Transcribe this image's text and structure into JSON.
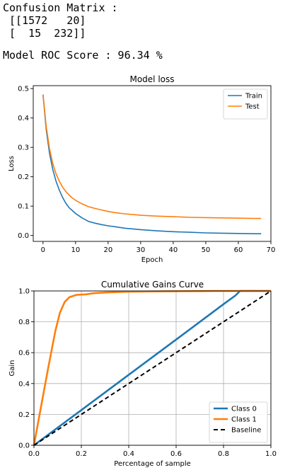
{
  "output": {
    "cm_header": "Confusion Matrix :",
    "cm_row1": " [[1572   20]",
    "cm_row2": " [  15  232]]",
    "roc_line": "Model ROC Score : 96.34 %"
  },
  "chart_data": [
    {
      "type": "line",
      "title": "Model loss",
      "xlabel": "Epoch",
      "ylabel": "Loss",
      "xlim": [
        -3,
        70
      ],
      "ylim": [
        -0.02,
        0.51
      ],
      "xticks": [
        0,
        10,
        20,
        30,
        40,
        50,
        60,
        70
      ],
      "yticks": [
        0.0,
        0.1,
        0.2,
        0.3,
        0.4,
        0.5
      ],
      "legend": "top-right",
      "grid": false,
      "series": [
        {
          "name": "Train",
          "color": "#1f77b4",
          "x": [
            0,
            1,
            2,
            3,
            4,
            5,
            6,
            7,
            8,
            9,
            10,
            12,
            14,
            16,
            18,
            20,
            22,
            25,
            30,
            35,
            40,
            45,
            50,
            55,
            60,
            65,
            67
          ],
          "y": [
            0.48,
            0.36,
            0.28,
            0.225,
            0.185,
            0.155,
            0.13,
            0.11,
            0.095,
            0.085,
            0.075,
            0.06,
            0.048,
            0.042,
            0.037,
            0.033,
            0.03,
            0.025,
            0.02,
            0.016,
            0.013,
            0.011,
            0.009,
            0.008,
            0.007,
            0.006,
            0.006
          ]
        },
        {
          "name": "Test",
          "color": "#ff7f0e",
          "x": [
            0,
            1,
            2,
            3,
            4,
            5,
            6,
            7,
            8,
            9,
            10,
            12,
            14,
            16,
            18,
            20,
            22,
            25,
            30,
            35,
            40,
            45,
            50,
            55,
            60,
            65,
            67
          ],
          "y": [
            0.48,
            0.37,
            0.295,
            0.245,
            0.21,
            0.185,
            0.165,
            0.15,
            0.138,
            0.128,
            0.12,
            0.108,
            0.098,
            0.092,
            0.087,
            0.082,
            0.078,
            0.074,
            0.069,
            0.066,
            0.064,
            0.062,
            0.061,
            0.06,
            0.059,
            0.058,
            0.058
          ]
        }
      ]
    },
    {
      "type": "line",
      "title": "Cumulative Gains Curve",
      "xlabel": "Percentage of sample",
      "ylabel": "Gain",
      "xlim": [
        0,
        1
      ],
      "ylim": [
        0,
        1
      ],
      "xticks": [
        0.0,
        0.2,
        0.4,
        0.6,
        0.8,
        1.0
      ],
      "yticks": [
        0.0,
        0.2,
        0.4,
        0.6,
        0.8,
        1.0
      ],
      "legend": "bottom-right",
      "grid": true,
      "series": [
        {
          "name": "Class 0",
          "color": "#1f77b4",
          "dash": false,
          "x": [
            0,
            0.2,
            0.4,
            0.6,
            0.8,
            0.85,
            0.87,
            1.0
          ],
          "y": [
            0,
            0.228,
            0.457,
            0.685,
            0.914,
            0.97,
            1.0,
            1.0
          ]
        },
        {
          "name": "Class 1",
          "color": "#ff7f0e",
          "dash": false,
          "x": [
            0,
            0.03,
            0.06,
            0.09,
            0.11,
            0.13,
            0.15,
            0.18,
            0.22,
            0.25,
            0.3,
            0.4,
            0.5,
            0.6,
            0.7,
            0.76,
            0.8,
            1.0
          ],
          "y": [
            0,
            0.25,
            0.5,
            0.74,
            0.86,
            0.93,
            0.96,
            0.975,
            0.978,
            0.985,
            0.99,
            0.995,
            0.997,
            0.998,
            0.999,
            1.0,
            1.0,
            1.0
          ]
        },
        {
          "name": "Baseline",
          "color": "#000000",
          "dash": true,
          "x": [
            0,
            1
          ],
          "y": [
            0,
            1
          ]
        }
      ]
    }
  ]
}
